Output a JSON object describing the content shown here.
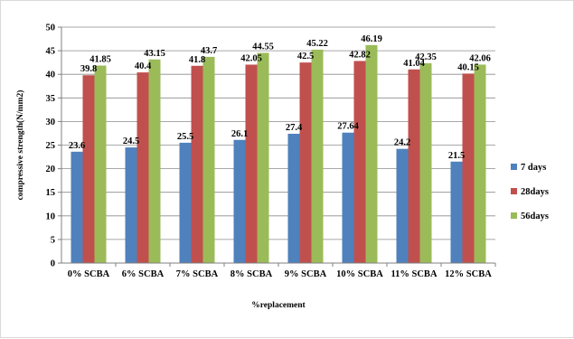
{
  "chart_data": {
    "type": "bar",
    "title": "",
    "xlabel": "%replacement",
    "ylabel": "compressive strength(N/mm2)",
    "ylim": [
      0,
      50
    ],
    "yticks": [
      0,
      5,
      10,
      15,
      20,
      25,
      30,
      35,
      40,
      45,
      50
    ],
    "grid": true,
    "legend_position": "right",
    "categories": [
      "0% SCBA",
      "6% SCBA",
      "7% SCBA",
      "8% SCBA",
      "9% SCBA",
      "10% SCBA",
      "11% SCBA",
      "12% SCBA"
    ],
    "series": [
      {
        "name": "7 days",
        "color": "#4f81bd",
        "values": [
          23.6,
          24.5,
          25.5,
          26.1,
          27.4,
          27.64,
          24.2,
          21.5
        ],
        "labels": [
          "23.6",
          "24.5",
          "25.5",
          "26.1",
          "27.4",
          "27.64",
          "24.2",
          "21.5"
        ]
      },
      {
        "name": "28days",
        "color": "#c0504d",
        "values": [
          39.8,
          40.4,
          41.8,
          42.05,
          42.5,
          42.82,
          41.04,
          40.15
        ],
        "labels": [
          "39.8",
          "40.4",
          "41.8",
          "42.05",
          "42.5",
          "42.82",
          "41.04",
          "40.15"
        ]
      },
      {
        "name": "56days",
        "color": "#9bbb59",
        "values": [
          41.85,
          43.15,
          43.7,
          44.55,
          45.22,
          46.19,
          42.35,
          42.06
        ],
        "labels": [
          "41.85",
          "43.15",
          "43.7",
          "44.55",
          "45.22",
          "46.19",
          "42.35",
          "42.06"
        ]
      }
    ]
  }
}
